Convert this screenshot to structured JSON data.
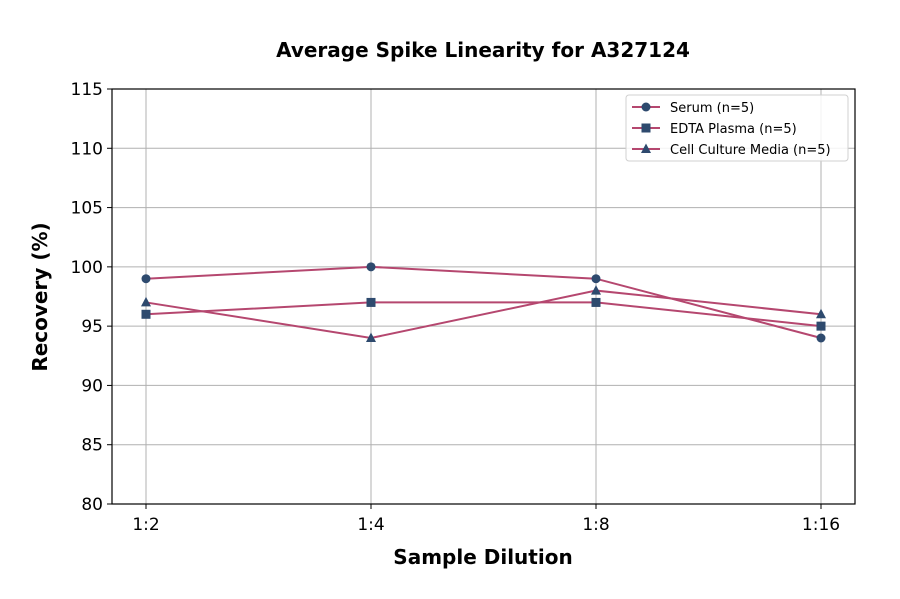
{
  "chart_data": {
    "type": "line",
    "title": "Average Spike Linearity for A327124",
    "xlabel": "Sample Dilution",
    "ylabel": "Recovery (%)",
    "categories": [
      "1:2",
      "1:4",
      "1:8",
      "1:16"
    ],
    "ylim": [
      80,
      115
    ],
    "yticks": [
      80,
      85,
      90,
      95,
      100,
      105,
      110,
      115
    ],
    "grid": true,
    "legend_position": "top-right",
    "line_color": "#b5476f",
    "marker_color": "#2e4a6e",
    "series": [
      {
        "name": "Serum (n=5)",
        "marker": "circle",
        "values": [
          99,
          100,
          99,
          94
        ]
      },
      {
        "name": "EDTA Plasma (n=5)",
        "marker": "square",
        "values": [
          96,
          97,
          97,
          95
        ]
      },
      {
        "name": "Cell Culture Media (n=5)",
        "marker": "triangle",
        "values": [
          97,
          94,
          98,
          96
        ]
      }
    ]
  }
}
